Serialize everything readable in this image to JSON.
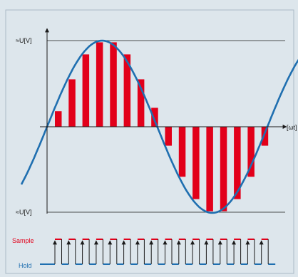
{
  "chart_data": {
    "type": "bar",
    "title": "",
    "amplitude_label_top": "≈U[V]",
    "amplitude_label_bottom": "≈U[V]",
    "xlabel": "[ωt]",
    "signal_label_sample": "Sample",
    "signal_label_hold": "Hold",
    "ylim": [
      -1,
      1
    ],
    "phase_per_sample_deg": 22.5,
    "sample_values": [
      0.18,
      0.55,
      0.84,
      0.98,
      0.98,
      0.84,
      0.55,
      0.22,
      -0.22,
      -0.58,
      -0.84,
      -0.98,
      -0.98,
      -0.84,
      -0.58,
      -0.22
    ],
    "colors": {
      "background": "#dde6ec",
      "frame": "#aab9c6",
      "sine": "#1f6fb0",
      "bars": "#e2001a",
      "axes": "#1a1a1a",
      "sample_signal": "#e2001a",
      "hold_signal": "#1f6fb0"
    }
  }
}
